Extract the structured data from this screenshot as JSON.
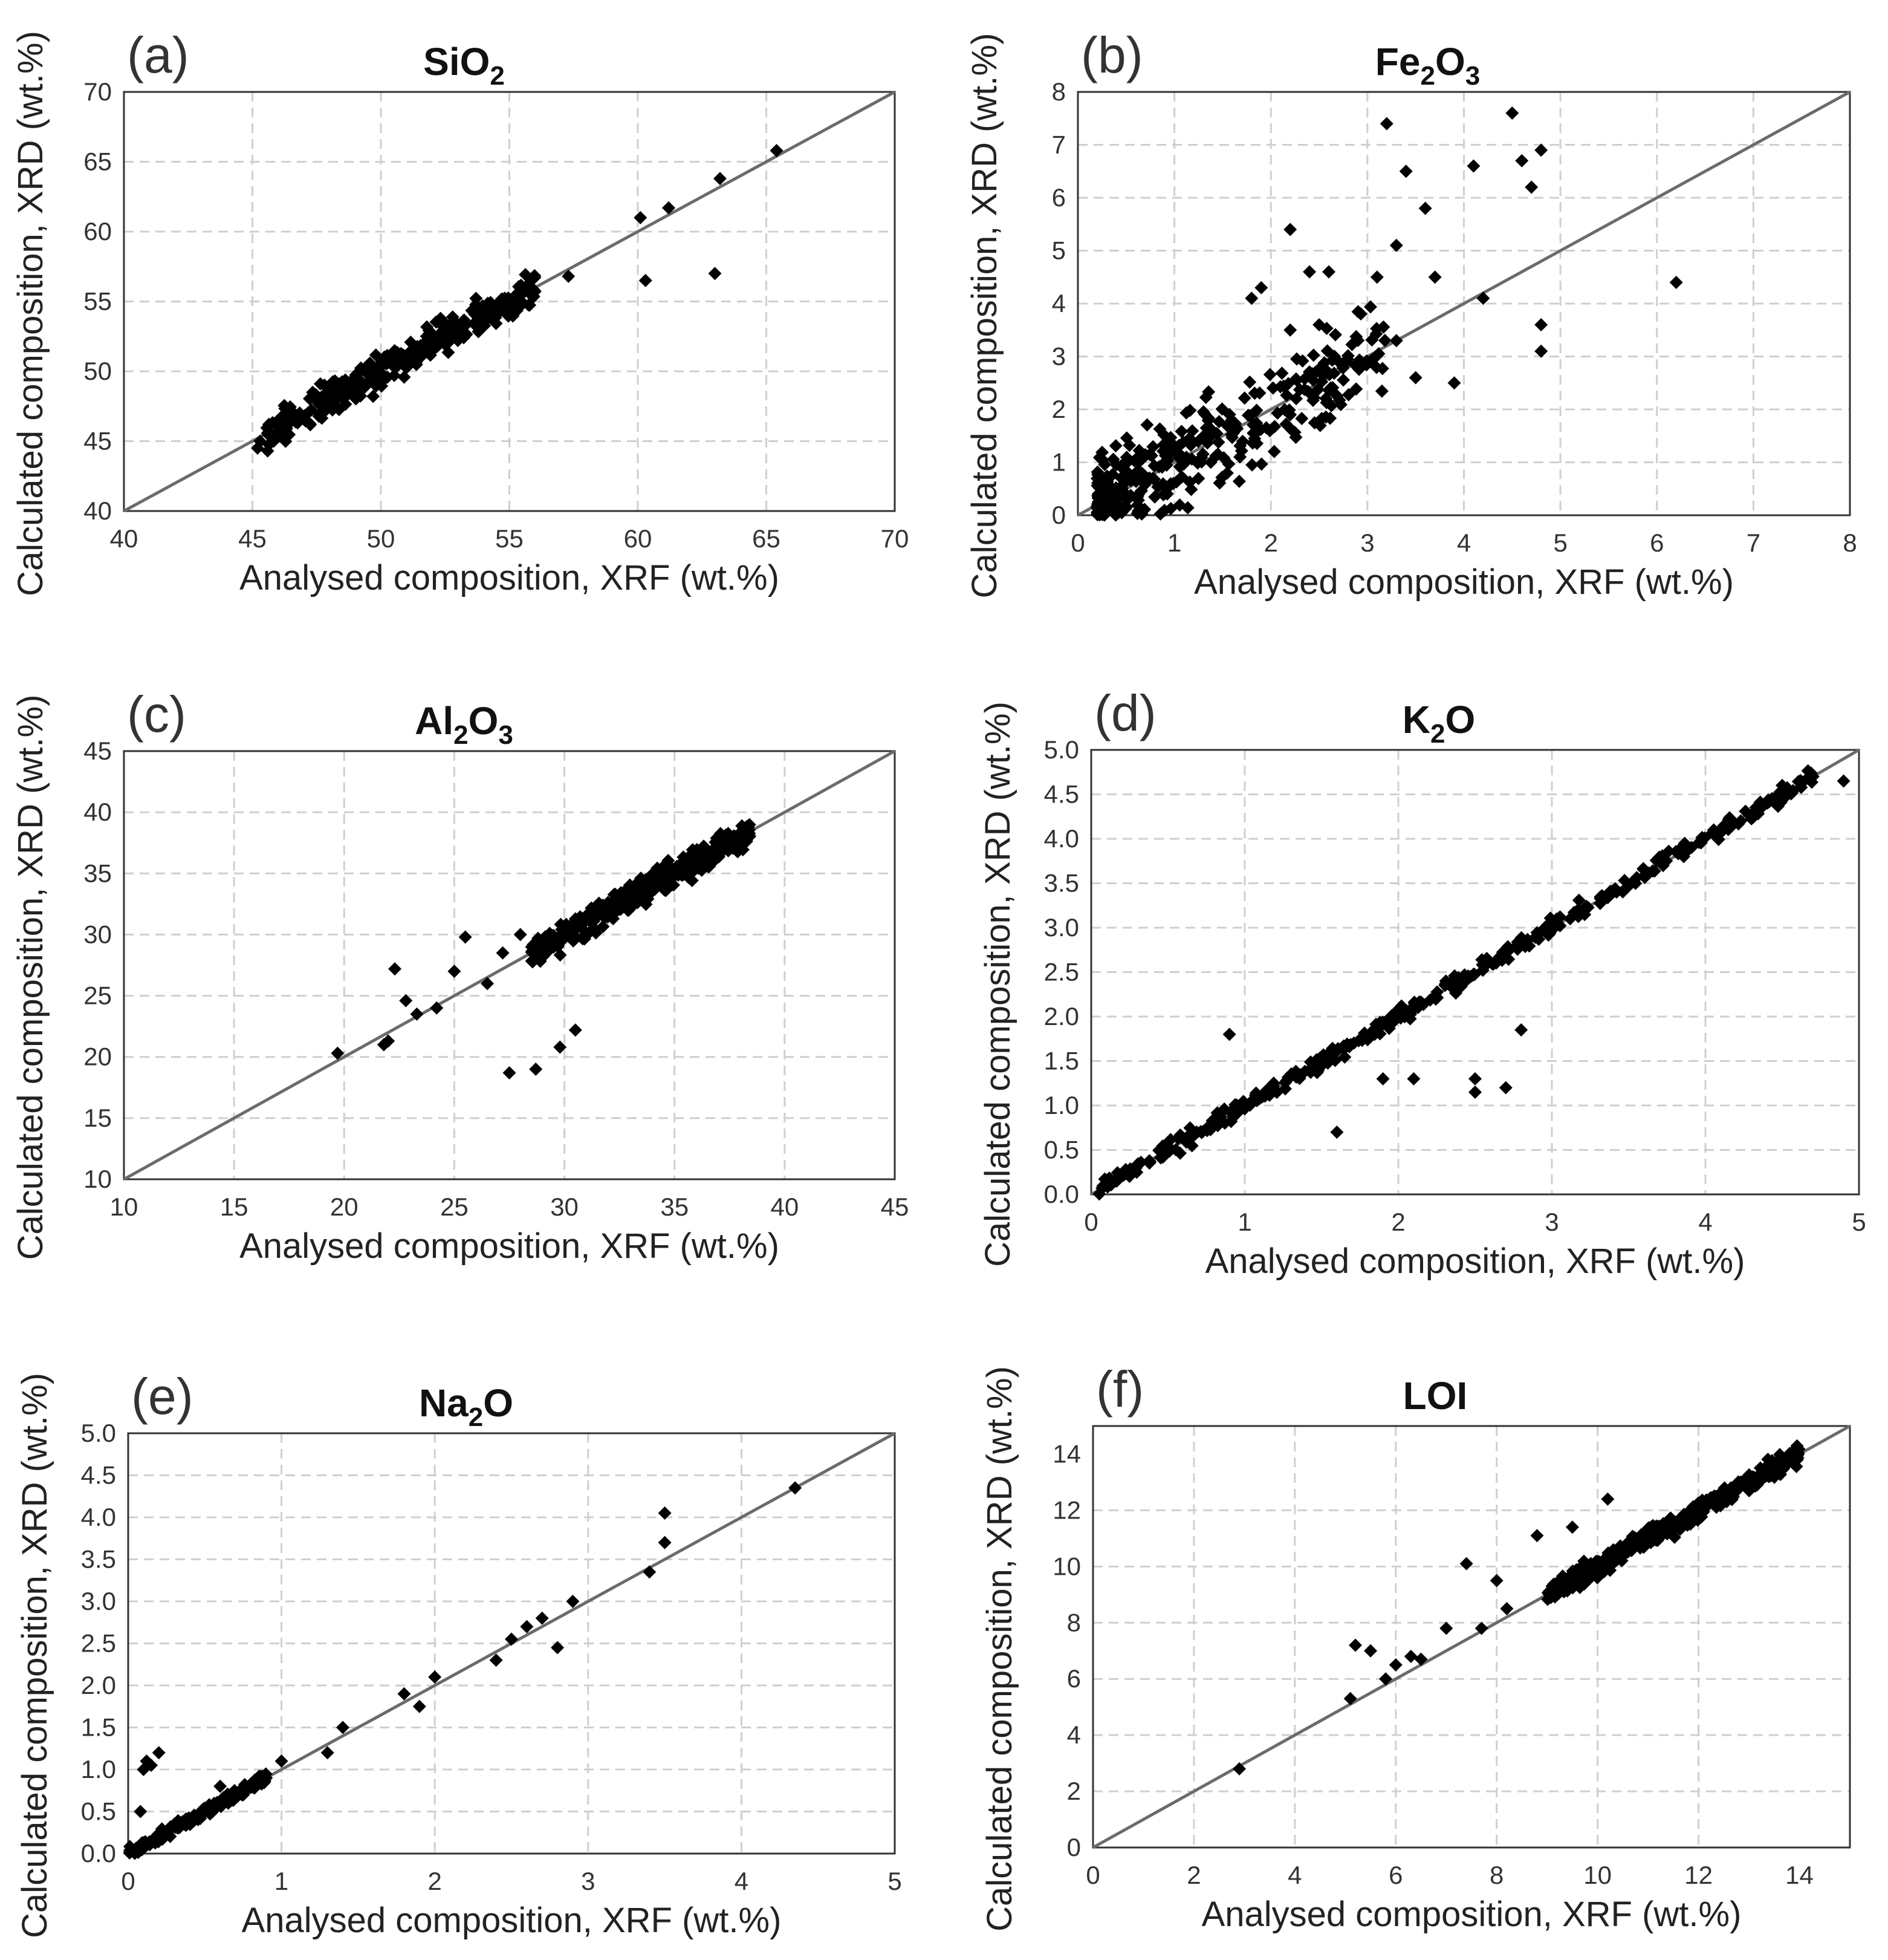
{
  "chart_data": [
    {
      "type": "scatter",
      "panel": "(a)",
      "title": "SiO2",
      "title_main": "SiO",
      "title_sub": "2",
      "xlabel": "Analysed composition, XRF (wt.%)",
      "ylabel": "Calculated composition, XRD (wt.%)",
      "xlim": [
        40,
        70
      ],
      "ylim": [
        40,
        70
      ],
      "xticks": [
        "40",
        "45",
        "50",
        "55",
        "60",
        "65",
        "70"
      ],
      "yticks": [
        "40",
        "45",
        "50",
        "55",
        "60",
        "65",
        "70"
      ],
      "grid": true,
      "reference_line": "1:1",
      "highlight": {
        "x": [
          45.2,
          45.3,
          46.0,
          54.2,
          57.3,
          60.1,
          60.3,
          61.2,
          63.0,
          63.2,
          65.4
        ],
        "y": [
          44.5,
          45.0,
          46.5,
          54.3,
          56.8,
          61.0,
          56.5,
          61.7,
          57.0,
          63.8,
          65.8
        ]
      },
      "cloud": {
        "x_min": 45.5,
        "x_max": 56,
        "noise": 1.2,
        "count": 320
      }
    },
    {
      "type": "scatter",
      "panel": "(b)",
      "title": "Fe2O3",
      "title_main": "Fe",
      "title_sub": "2",
      "title_main2": "O",
      "title_sub2": "3",
      "xlabel": "Analysed composition, XRF (wt.%)",
      "ylabel": "Calculated composition, XRD (wt.%)",
      "xlim": [
        0,
        8
      ],
      "ylim": [
        0,
        8
      ],
      "xticks": [
        "0",
        "1",
        "2",
        "3",
        "4",
        "5",
        "6",
        "7",
        "8"
      ],
      "yticks": [
        "0",
        "1",
        "2",
        "3",
        "4",
        "5",
        "6",
        "7",
        "8"
      ],
      "grid": true,
      "reference_line": "1:1",
      "highlight": {
        "x": [
          3.2,
          3.4,
          3.3,
          3.1,
          3.6,
          3.7,
          4.1,
          4.2,
          4.5,
          4.6,
          4.7,
          4.8,
          4.8,
          4.8,
          6.2,
          2.2,
          2.2,
          2.4,
          2.6,
          2.5,
          2.2,
          1.9,
          1.8,
          3.3,
          3.5,
          3.9
        ],
        "y": [
          7.4,
          6.5,
          5.1,
          4.5,
          5.8,
          4.5,
          6.6,
          4.1,
          7.6,
          6.7,
          6.2,
          6.9,
          3.6,
          3.1,
          4.4,
          5.4,
          3.5,
          4.6,
          4.6,
          3.6,
          1.9,
          4.3,
          4.1,
          3.3,
          2.6,
          2.5
        ]
      },
      "cloud": {
        "x_min": 0.2,
        "x_max": 3.2,
        "noise": 0.9,
        "count": 360
      }
    },
    {
      "type": "scatter",
      "panel": "(c)",
      "title": "Al2O3",
      "title_main": "Al",
      "title_sub": "2",
      "title_main2": "O",
      "title_sub2": "3",
      "xlabel": "Analysed composition, XRF (wt.%)",
      "ylabel": "Calculated composition, XRD (wt.%)",
      "xlim": [
        10,
        45
      ],
      "ylim": [
        10,
        45
      ],
      "xticks": [
        "10",
        "15",
        "20",
        "25",
        "30",
        "35",
        "40",
        "45"
      ],
      "yticks": [
        "10",
        "15",
        "20",
        "25",
        "30",
        "35",
        "40",
        "45"
      ],
      "grid": true,
      "reference_line": "1:1",
      "highlight": {
        "x": [
          19.7,
          21.8,
          22.0,
          22.3,
          22.8,
          23.3,
          24.2,
          25.5,
          27.5,
          28.7,
          29.8,
          30.5,
          25.0,
          26.5,
          27.2,
          28.0
        ],
        "y": [
          20.3,
          21.0,
          21.3,
          27.2,
          24.6,
          23.5,
          24.0,
          29.8,
          18.7,
          19.0,
          20.8,
          22.2,
          27.0,
          26.0,
          28.5,
          30.0
        ]
      },
      "cloud": {
        "x_min": 28.5,
        "x_max": 38.5,
        "noise": 1.1,
        "count": 360
      }
    },
    {
      "type": "scatter",
      "panel": "(d)",
      "title": "K2O",
      "title_main": "K",
      "title_sub": "2",
      "title_main2": "O",
      "title_sub2": "",
      "xlabel": "Analysed composition, XRF (wt.%)",
      "ylabel": "Calculated composition, XRD (wt.%)",
      "xlim": [
        0,
        5
      ],
      "ylim": [
        0,
        5
      ],
      "xticks": [
        "0",
        "1",
        "2",
        "3",
        "4",
        "5"
      ],
      "yticks": [
        "0.0",
        "0.5",
        "1.0",
        "1.5",
        "2.0",
        "2.5",
        "3.0",
        "3.5",
        "4.0",
        "4.5",
        "5.0"
      ],
      "grid": true,
      "reference_line": "1:1",
      "highlight": {
        "x": [
          0.9,
          1.6,
          1.9,
          2.1,
          2.5,
          2.5,
          2.7,
          2.8,
          4.9,
          4.7,
          4.5
        ],
        "y": [
          1.8,
          0.7,
          1.3,
          1.3,
          1.3,
          1.15,
          1.2,
          1.85,
          4.65,
          4.7,
          4.6
        ]
      },
      "cloud": {
        "x_min": 0.05,
        "x_max": 4.7,
        "noise": 0.09,
        "count": 380
      }
    },
    {
      "type": "scatter",
      "panel": "(e)",
      "title": "Na2O",
      "title_main": "Na",
      "title_sub": "2",
      "title_main2": "O",
      "title_sub2": "",
      "xlabel": "Analysed composition, XRF (wt.%)",
      "ylabel": "Calculated composition, XRD (wt.%)",
      "xlim": [
        0,
        5
      ],
      "ylim": [
        0,
        5
      ],
      "xticks": [
        "0",
        "1",
        "2",
        "3",
        "4",
        "5"
      ],
      "yticks": [
        "0.0",
        "0.5",
        "1.0",
        "1.5",
        "2.0",
        "2.5",
        "3.0",
        "3.5",
        "4.0",
        "4.5",
        "5.0"
      ],
      "grid": true,
      "reference_line": "1:1",
      "highlight": {
        "x": [
          0.1,
          0.12,
          0.15,
          0.2,
          0.08,
          0.6,
          0.9,
          1.0,
          1.3,
          1.4,
          1.8,
          1.9,
          2.0,
          2.4,
          2.5,
          2.6,
          2.7,
          2.8,
          2.9,
          3.4,
          3.5,
          3.5,
          4.35
        ],
        "y": [
          1.0,
          1.1,
          1.05,
          1.2,
          0.5,
          0.8,
          0.9,
          1.1,
          1.2,
          1.5,
          1.9,
          1.75,
          2.1,
          2.3,
          2.55,
          2.7,
          2.8,
          2.45,
          3.0,
          3.35,
          3.7,
          4.05,
          4.35
        ]
      },
      "cloud": {
        "x_min": 0.0,
        "x_max": 0.9,
        "noise": 0.06,
        "count": 170
      }
    },
    {
      "type": "scatter",
      "panel": "(f)",
      "title": "LOI",
      "title_main": "LOI",
      "title_sub": "",
      "xlabel": "Analysed composition, XRF (wt.%)",
      "ylabel": "Calculated composition, XRD (wt.%)",
      "xlim": [
        0,
        15
      ],
      "ylim": [
        0,
        15
      ],
      "xticks": [
        "0",
        "2",
        "4",
        "6",
        "8",
        "10",
        "12",
        "14"
      ],
      "yticks": [
        "0",
        "2",
        "4",
        "6",
        "8",
        "10",
        "12",
        "14"
      ],
      "grid": true,
      "reference_line": "1:1",
      "highlight": {
        "x": [
          2.9,
          5.1,
          5.2,
          5.5,
          5.8,
          6.0,
          6.3,
          6.5,
          7.0,
          7.4,
          7.7,
          8.0,
          8.2,
          8.8,
          9.1,
          9.5,
          10.2
        ],
        "y": [
          2.8,
          5.3,
          7.2,
          7.0,
          6.0,
          6.5,
          6.8,
          6.7,
          7.8,
          10.1,
          7.8,
          9.5,
          8.5,
          11.1,
          9.3,
          11.4,
          12.4
        ]
      },
      "cloud": {
        "x_min": 9.0,
        "x_max": 14.0,
        "noise": 0.35,
        "count": 380
      }
    }
  ]
}
